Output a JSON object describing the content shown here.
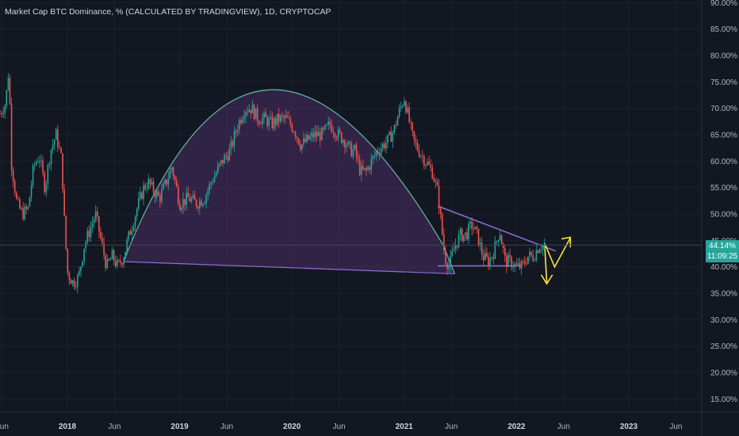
{
  "header": {
    "title": "Market Cap BTC Dominance, % (CALCULATED BY TRADINGVIEW), 1D, CRYPTOCAP"
  },
  "price_tag": {
    "value": "44.14%",
    "countdown": "11:09:25",
    "color": "#26a69a"
  },
  "colors": {
    "background": "#131722",
    "grid": "#1e222d",
    "up": "#26a69a",
    "down": "#ef5350",
    "arc": "#5bb0a0",
    "arc_fill": "#4a2e63",
    "trendline": "#8f6fd1",
    "arrow": "#f5e53b"
  },
  "chart_data": {
    "type": "candlestick",
    "title": "Market Cap BTC Dominance, % (CALCULATED BY TRADINGVIEW), 1D, CRYPTOCAP",
    "y_axis": {
      "ticks": [
        "90.00%",
        "85.00%",
        "80.00%",
        "75.00%",
        "70.00%",
        "65.00%",
        "60.00%",
        "55.00%",
        "50.00%",
        "45.00%",
        "40.00%",
        "35.00%",
        "30.00%",
        "25.00%",
        "20.00%",
        "15.00%"
      ],
      "tick_values": [
        90,
        85,
        80,
        75,
        70,
        65,
        60,
        55,
        50,
        45,
        40,
        35,
        30,
        25,
        20,
        15
      ],
      "range": [
        12.5,
        90.5
      ]
    },
    "x_axis": {
      "ticks": [
        {
          "label": "Jun",
          "t": 2017.42,
          "bold": false
        },
        {
          "label": "2018",
          "t": 2018.0,
          "bold": true
        },
        {
          "label": "Jun",
          "t": 2018.42,
          "bold": false
        },
        {
          "label": "2019",
          "t": 2019.0,
          "bold": true
        },
        {
          "label": "Jun",
          "t": 2019.42,
          "bold": false
        },
        {
          "label": "2020",
          "t": 2020.0,
          "bold": true
        },
        {
          "label": "Jun",
          "t": 2020.42,
          "bold": false
        },
        {
          "label": "2021",
          "t": 2021.0,
          "bold": true
        },
        {
          "label": "Jun",
          "t": 2021.42,
          "bold": false
        },
        {
          "label": "2022",
          "t": 2022.0,
          "bold": true
        },
        {
          "label": "Jun",
          "t": 2022.42,
          "bold": false
        },
        {
          "label": "2023",
          "t": 2023.0,
          "bold": true
        },
        {
          "label": "Jun",
          "t": 2023.42,
          "bold": false
        }
      ],
      "range": [
        2017.4,
        2023.65
      ]
    },
    "series": [
      {
        "name": "",
        "points": [
          {
            "t": 2017.4,
            "v": 69
          },
          {
            "t": 2017.45,
            "v": 71
          },
          {
            "t": 2017.48,
            "v": 78
          },
          {
            "t": 2017.5,
            "v": 60
          },
          {
            "t": 2017.55,
            "v": 52
          },
          {
            "t": 2017.6,
            "v": 50
          },
          {
            "t": 2017.65,
            "v": 51
          },
          {
            "t": 2017.7,
            "v": 59
          },
          {
            "t": 2017.75,
            "v": 61
          },
          {
            "t": 2017.8,
            "v": 55
          },
          {
            "t": 2017.85,
            "v": 62
          },
          {
            "t": 2017.9,
            "v": 65
          },
          {
            "t": 2017.95,
            "v": 60
          },
          {
            "t": 2017.97,
            "v": 50
          },
          {
            "t": 2018.0,
            "v": 39
          },
          {
            "t": 2018.05,
            "v": 37
          },
          {
            "t": 2018.1,
            "v": 38
          },
          {
            "t": 2018.15,
            "v": 44
          },
          {
            "t": 2018.2,
            "v": 47
          },
          {
            "t": 2018.25,
            "v": 50
          },
          {
            "t": 2018.3,
            "v": 45
          },
          {
            "t": 2018.35,
            "v": 40
          },
          {
            "t": 2018.4,
            "v": 42
          },
          {
            "t": 2018.45,
            "v": 40
          },
          {
            "t": 2018.5,
            "v": 42
          },
          {
            "t": 2018.55,
            "v": 46
          },
          {
            "t": 2018.62,
            "v": 51
          },
          {
            "t": 2018.68,
            "v": 55
          },
          {
            "t": 2018.72,
            "v": 56
          },
          {
            "t": 2018.75,
            "v": 55
          },
          {
            "t": 2018.82,
            "v": 53
          },
          {
            "t": 2018.88,
            "v": 56
          },
          {
            "t": 2018.93,
            "v": 59
          },
          {
            "t": 2019.0,
            "v": 52
          },
          {
            "t": 2019.08,
            "v": 53
          },
          {
            "t": 2019.15,
            "v": 52
          },
          {
            "t": 2019.22,
            "v": 53
          },
          {
            "t": 2019.28,
            "v": 56
          },
          {
            "t": 2019.33,
            "v": 58
          },
          {
            "t": 2019.38,
            "v": 60
          },
          {
            "t": 2019.45,
            "v": 62
          },
          {
            "t": 2019.52,
            "v": 67
          },
          {
            "t": 2019.58,
            "v": 70
          },
          {
            "t": 2019.64,
            "v": 70
          },
          {
            "t": 2019.7,
            "v": 68
          },
          {
            "t": 2019.76,
            "v": 68
          },
          {
            "t": 2019.82,
            "v": 67
          },
          {
            "t": 2019.88,
            "v": 68
          },
          {
            "t": 2019.95,
            "v": 68
          },
          {
            "t": 2020.02,
            "v": 66
          },
          {
            "t": 2020.08,
            "v": 63
          },
          {
            "t": 2020.14,
            "v": 64
          },
          {
            "t": 2020.2,
            "v": 65
          },
          {
            "t": 2020.27,
            "v": 65
          },
          {
            "t": 2020.34,
            "v": 67
          },
          {
            "t": 2020.41,
            "v": 65
          },
          {
            "t": 2020.47,
            "v": 64
          },
          {
            "t": 2020.52,
            "v": 62
          },
          {
            "t": 2020.56,
            "v": 62
          },
          {
            "t": 2020.61,
            "v": 58
          },
          {
            "t": 2020.66,
            "v": 58
          },
          {
            "t": 2020.71,
            "v": 60
          },
          {
            "t": 2020.76,
            "v": 62
          },
          {
            "t": 2020.81,
            "v": 63
          },
          {
            "t": 2020.86,
            "v": 64
          },
          {
            "t": 2020.91,
            "v": 66
          },
          {
            "t": 2020.95,
            "v": 69
          },
          {
            "t": 2021.0,
            "v": 72
          },
          {
            "t": 2021.04,
            "v": 68
          },
          {
            "t": 2021.08,
            "v": 64
          },
          {
            "t": 2021.13,
            "v": 62
          },
          {
            "t": 2021.19,
            "v": 60
          },
          {
            "t": 2021.25,
            "v": 58
          },
          {
            "t": 2021.3,
            "v": 54
          },
          {
            "t": 2021.33,
            "v": 48
          },
          {
            "t": 2021.36,
            "v": 42
          },
          {
            "t": 2021.4,
            "v": 40
          },
          {
            "t": 2021.45,
            "v": 44
          },
          {
            "t": 2021.5,
            "v": 46
          },
          {
            "t": 2021.55,
            "v": 46
          },
          {
            "t": 2021.6,
            "v": 48
          },
          {
            "t": 2021.65,
            "v": 46
          },
          {
            "t": 2021.7,
            "v": 42
          },
          {
            "t": 2021.75,
            "v": 41
          },
          {
            "t": 2021.8,
            "v": 43
          },
          {
            "t": 2021.85,
            "v": 47
          },
          {
            "t": 2021.9,
            "v": 41
          },
          {
            "t": 2021.95,
            "v": 41
          },
          {
            "t": 2022.0,
            "v": 40
          },
          {
            "t": 2022.05,
            "v": 40
          },
          {
            "t": 2022.1,
            "v": 42
          },
          {
            "t": 2022.15,
            "v": 42
          },
          {
            "t": 2022.2,
            "v": 44
          },
          {
            "t": 2022.25,
            "v": 44.14
          }
        ]
      }
    ]
  }
}
